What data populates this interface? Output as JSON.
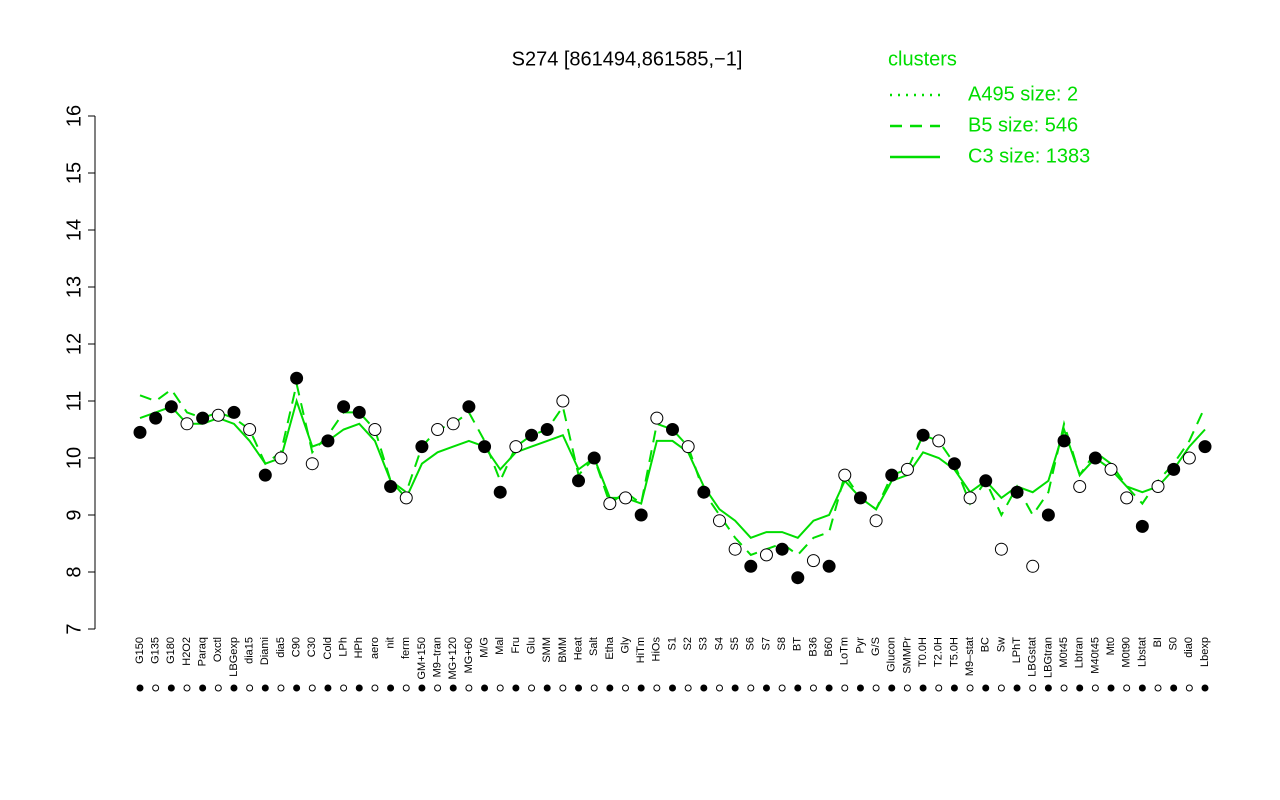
{
  "chart_data": {
    "type": "line",
    "title": "S274 [861494,861585,−1]",
    "legend_title": "clusters",
    "legend_position": "top-right",
    "categories": [
      "G150",
      "G135",
      "G180",
      "H2O2",
      "Paraq",
      "Oxctl",
      "LBGexp",
      "dia15",
      "Diami",
      "dia5",
      "C90",
      "C30",
      "Cold",
      "LPh",
      "HPh",
      "aero",
      "nit",
      "ferm",
      "GM+150",
      "M9–tran",
      "MG+120",
      "MG+60",
      "M/G",
      "Mal",
      "Fru",
      "Glu",
      "SMM",
      "BMM",
      "Heat",
      "Salt",
      "Etha",
      "Gly",
      "HiTm",
      "HiOs",
      "S1",
      "S2",
      "S3",
      "S4",
      "S5",
      "S6",
      "S7",
      "S8",
      "BT",
      "B36",
      "B60",
      "LoTm",
      "Pyr",
      "G/S",
      "Glucon",
      "SMMPr",
      "T0.0H",
      "T2.0H",
      "T5.0H",
      "M9–stat",
      "BC",
      "Sw",
      "LPhT",
      "LBGstat",
      "LBGtran",
      "M0t45",
      "Lbtran",
      "M40t45",
      "Mt0",
      "M0t90",
      "Lbstat",
      "BI",
      "S0",
      "dia0",
      "Lbexp"
    ],
    "points": {
      "values": [
        10.45,
        10.7,
        10.9,
        10.6,
        10.7,
        10.75,
        10.8,
        10.5,
        9.7,
        10.0,
        11.4,
        9.9,
        10.3,
        10.9,
        10.8,
        10.5,
        9.5,
        9.3,
        10.2,
        10.5,
        10.6,
        10.9,
        10.2,
        9.4,
        10.2,
        10.4,
        10.5,
        11.0,
        9.6,
        10.0,
        9.2,
        9.3,
        9.0,
        10.7,
        10.5,
        10.2,
        9.4,
        8.9,
        8.4,
        8.1,
        8.3,
        8.4,
        7.9,
        8.2,
        8.1,
        9.7,
        9.3,
        8.9,
        9.7,
        9.8,
        10.4,
        10.3,
        9.9,
        9.3,
        9.6,
        8.4,
        9.4,
        8.1,
        9.0,
        10.3,
        9.5,
        10.0,
        9.8,
        9.3,
        8.8,
        9.5,
        9.8,
        10.0,
        10.2
      ],
      "filled": [
        true,
        true,
        true,
        false,
        true,
        false,
        true,
        false,
        true,
        false,
        true,
        false,
        true,
        true,
        true,
        false,
        true,
        false,
        true,
        false,
        false,
        true,
        true,
        true,
        false,
        true,
        true,
        false,
        true,
        true,
        false,
        false,
        true,
        false,
        true,
        false,
        true,
        false,
        false,
        true,
        false,
        true,
        true,
        false,
        true,
        false,
        true,
        false,
        true,
        false,
        true,
        false,
        true,
        false,
        true,
        false,
        true,
        false,
        true,
        true,
        false,
        true,
        false,
        false,
        true,
        false,
        true,
        false,
        true
      ]
    },
    "series": [
      {
        "name": "A495 size: 2",
        "color": "#00dd00",
        "dash": "dotted",
        "values": [
          null,
          null,
          null,
          null,
          null,
          null,
          null,
          null,
          null,
          null,
          null,
          null,
          null,
          null,
          null,
          null,
          null,
          null,
          null,
          null,
          null,
          null,
          null,
          null,
          null,
          null,
          null,
          null,
          null,
          null,
          null,
          null,
          null,
          null,
          null,
          null,
          null,
          null,
          null,
          null,
          null,
          null,
          null,
          null,
          null,
          null,
          null,
          null,
          null,
          null,
          null,
          null,
          null,
          null,
          null,
          null,
          null,
          null,
          null,
          null,
          null,
          null,
          null,
          null,
          null,
          null,
          null,
          null,
          null
        ]
      },
      {
        "name": "B5 size: 546",
        "color": "#00dd00",
        "dash": "dashed",
        "values": [
          11.1,
          11.0,
          11.2,
          10.8,
          10.7,
          10.8,
          10.7,
          10.5,
          9.9,
          10.1,
          11.3,
          10.1,
          10.4,
          10.8,
          10.8,
          10.5,
          9.6,
          9.4,
          10.2,
          10.5,
          10.6,
          10.8,
          10.3,
          9.6,
          10.2,
          10.4,
          10.5,
          10.9,
          9.7,
          10.0,
          9.2,
          9.4,
          9.2,
          10.6,
          10.5,
          10.2,
          9.4,
          9.0,
          8.6,
          8.3,
          8.4,
          8.5,
          8.3,
          8.6,
          8.7,
          9.7,
          9.3,
          9.1,
          9.7,
          9.8,
          10.4,
          10.3,
          9.9,
          9.2,
          9.6,
          9.0,
          9.5,
          9.0,
          9.4,
          10.6,
          9.7,
          10.1,
          9.9,
          9.5,
          9.2,
          9.6,
          9.9,
          10.3,
          10.9
        ]
      },
      {
        "name": "C3 size: 1383",
        "color": "#00dd00",
        "dash": "solid",
        "values": [
          10.7,
          10.8,
          10.9,
          10.6,
          10.6,
          10.7,
          10.6,
          10.3,
          9.9,
          10.0,
          11.0,
          10.2,
          10.3,
          10.5,
          10.6,
          10.3,
          9.6,
          9.3,
          9.9,
          10.1,
          10.2,
          10.3,
          10.2,
          9.8,
          10.1,
          10.2,
          10.3,
          10.4,
          9.8,
          10.0,
          9.3,
          9.3,
          9.2,
          10.3,
          10.3,
          10.1,
          9.5,
          9.1,
          8.9,
          8.6,
          8.7,
          8.7,
          8.6,
          8.9,
          9.0,
          9.6,
          9.3,
          9.1,
          9.6,
          9.7,
          10.1,
          10.0,
          9.8,
          9.4,
          9.6,
          9.3,
          9.5,
          9.4,
          9.6,
          10.5,
          9.7,
          10.0,
          9.8,
          9.5,
          9.4,
          9.5,
          9.8,
          10.2,
          10.5
        ]
      }
    ],
    "ylim": [
      7,
      16
    ],
    "yticks": [
      7,
      8,
      9,
      10,
      11,
      12,
      13,
      14,
      15,
      16
    ]
  }
}
